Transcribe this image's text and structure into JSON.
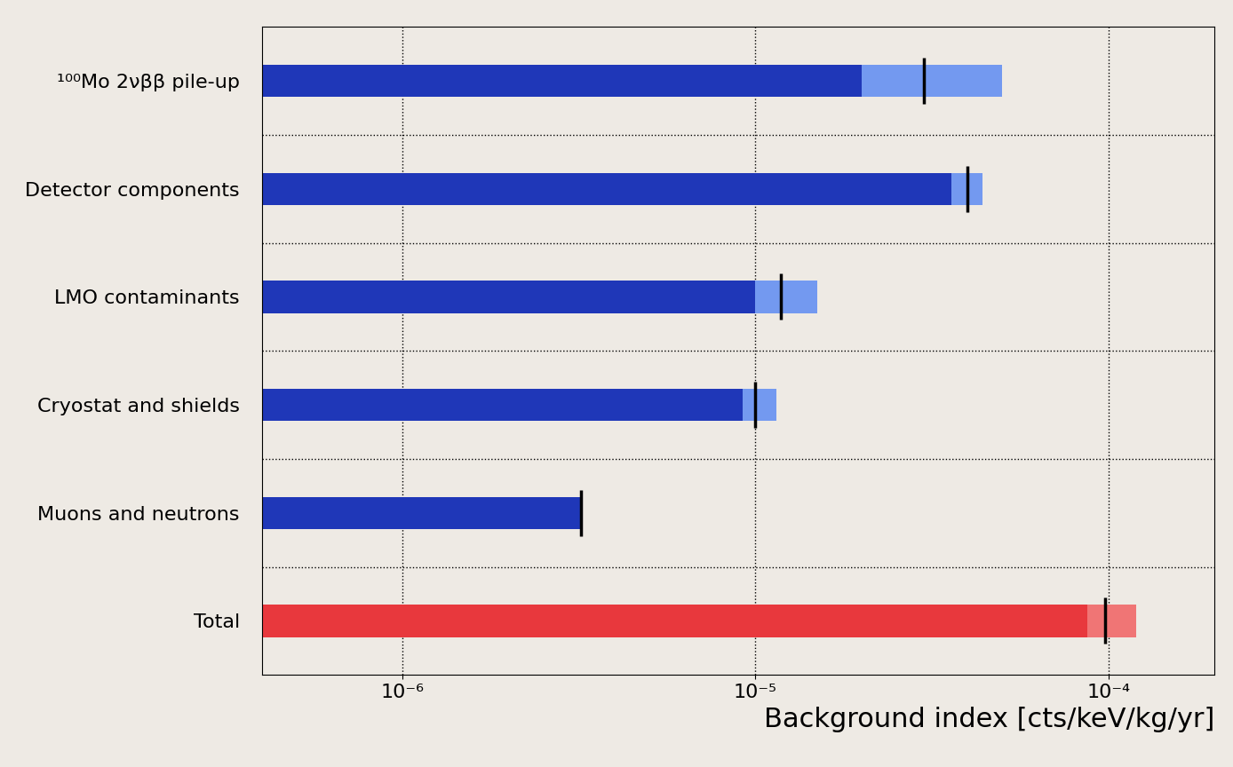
{
  "chart_data": {
    "type": "bar",
    "orientation": "horizontal",
    "log": "x",
    "grid": true,
    "xlabel": "Background index [cts/keV/kg/yr]",
    "categories": [
      "¹⁰⁰Mo 2νββ pile-up",
      "Detector components",
      "LMO contaminants",
      "Cryostat and shields",
      "Muons and neutrons",
      "Total"
    ],
    "series": [
      {
        "type": "bar",
        "colors": [
          "#7399f0",
          "#7399f0",
          "#7399f0",
          "#7399f0",
          "#7399f0",
          "#f07575"
        ],
        "values": [
          5e-05,
          4.4e-05,
          1.5e-05,
          1.15e-05,
          3.2e-06,
          0.00012
        ]
      },
      {
        "type": "bar",
        "colors": [
          "#1f37b8",
          "#1f37b8",
          "#1f37b8",
          "#1f37b8",
          "#1f37b8",
          "#e8383d"
        ],
        "values": [
          2e-05,
          3.6e-05,
          1e-05,
          9.2e-06,
          3.2e-06,
          8.7e-05
        ]
      },
      {
        "type": "marker",
        "marker": "|",
        "color": "#000000",
        "values": [
          3e-05,
          4e-05,
          1.18e-05,
          1e-05,
          3.2e-06,
          9.8e-05
        ]
      }
    ],
    "xlim": [
      4e-07,
      0.0002
    ],
    "xticks": [
      {
        "value": 1e-06,
        "label": "10⁻⁶"
      },
      {
        "value": 1e-05,
        "label": "10⁻⁵"
      },
      {
        "value": 0.0001,
        "label": "10⁻⁴"
      }
    ],
    "tick_labels": true
  }
}
